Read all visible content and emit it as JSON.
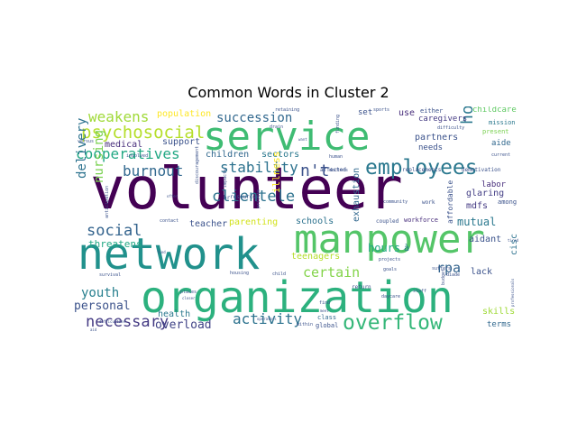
{
  "figure": {
    "title": "Common Words in Cluster 2"
  },
  "cloud": {
    "background_color": "#ffffff",
    "colormap": "viridis",
    "words": [
      {
        "text": "volunteer",
        "color": "#440154"
      },
      {
        "text": "network",
        "color": "#21918c"
      },
      {
        "text": "organization",
        "color": "#2cb17e"
      },
      {
        "text": "service",
        "color": "#3fbc73"
      },
      {
        "text": "manpower",
        "color": "#54c568"
      },
      {
        "text": "employees",
        "color": "#2a788e"
      },
      {
        "text": "overflow",
        "color": "#35b779"
      },
      {
        "text": "psychosocial",
        "color": "#b5de2b"
      },
      {
        "text": "cooperatives",
        "color": "#22a884"
      },
      {
        "text": "weakens",
        "color": "#a0da39"
      },
      {
        "text": "succession",
        "color": "#31688e"
      },
      {
        "text": "stability",
        "color": "#2c728e"
      },
      {
        "text": "home",
        "color": "#2a788e"
      },
      {
        "text": "n't",
        "color": "#3b528b"
      },
      {
        "text": "clientele",
        "color": "#2c728e"
      },
      {
        "text": "burnout",
        "color": "#31688e"
      },
      {
        "text": "social",
        "color": "#33638d"
      },
      {
        "text": "certain",
        "color": "#84d44b"
      },
      {
        "text": "activity",
        "color": "#2c728e"
      },
      {
        "text": "necessary",
        "color": "#443a83"
      },
      {
        "text": "youth",
        "color": "#277f8e"
      },
      {
        "text": "delivery",
        "color": "#2c728e"
      },
      {
        "text": "nursing",
        "color": "#7ad151"
      },
      {
        "text": "rpa",
        "color": "#33638d"
      },
      {
        "text": "mutual",
        "color": "#2a788e"
      },
      {
        "text": "overload",
        "color": "#414487"
      },
      {
        "text": "personal",
        "color": "#3b528b"
      },
      {
        "text": "threatens",
        "color": "#22a884"
      },
      {
        "text": "population",
        "color": "#fde725"
      },
      {
        "text": "medical",
        "color": "#472d7b"
      },
      {
        "text": "support",
        "color": "#3b528b"
      },
      {
        "text": "children",
        "color": "#31688e"
      },
      {
        "text": "sectors",
        "color": "#2a788e"
      },
      {
        "text": "illness",
        "color": "#fde725"
      },
      {
        "text": "teacher",
        "color": "#3b528b"
      },
      {
        "text": "parenting",
        "color": "#d2e21b"
      },
      {
        "text": "schools",
        "color": "#2c728e"
      },
      {
        "text": "teenagers",
        "color": "#b5de2b"
      },
      {
        "text": "health",
        "color": "#2a788e"
      },
      {
        "text": "exhaustion",
        "color": "#31688e"
      },
      {
        "text": "partners",
        "color": "#3b528b"
      },
      {
        "text": "hours",
        "color": "#22a884"
      },
      {
        "text": "à",
        "color": "#2a788e"
      },
      {
        "text": "mdfs",
        "color": "#443a83"
      },
      {
        "text": "glaring",
        "color": "#433e85"
      },
      {
        "text": "aidant",
        "color": "#3b528b"
      },
      {
        "text": "cisc",
        "color": "#2c728e"
      },
      {
        "text": "lack",
        "color": "#3b528b"
      },
      {
        "text": "skills",
        "color": "#a0da39"
      },
      {
        "text": "terms",
        "color": "#31688e"
      },
      {
        "text": "class",
        "color": "#31688e"
      },
      {
        "text": "global",
        "color": "#3b528b"
      },
      {
        "text": "labor",
        "color": "#472d7b"
      },
      {
        "text": "among",
        "color": "#3b528b"
      },
      {
        "text": "aide",
        "color": "#31688e"
      },
      {
        "text": "caregivers",
        "color": "#443a83"
      },
      {
        "text": "needs",
        "color": "#3b528b"
      },
      {
        "text": "use",
        "color": "#472d7b"
      },
      {
        "text": "set",
        "color": "#3b528b"
      },
      {
        "text": "childcare",
        "color": "#5ec962"
      },
      {
        "text": "either",
        "color": "#3b528b"
      },
      {
        "text": "mission",
        "color": "#2a788e"
      },
      {
        "text": "present",
        "color": "#7ad151"
      },
      {
        "text": "demotivation",
        "color": "#3b528b"
      },
      {
        "text": "replacements",
        "color": "#3b528b"
      },
      {
        "text": "affected",
        "color": "#3b528b"
      },
      {
        "text": "affordable",
        "color": "#3b528b"
      },
      {
        "text": "workforce",
        "color": "#472d7b"
      },
      {
        "text": "coupled",
        "color": "#3b528b"
      },
      {
        "text": "resources",
        "color": "#3b528b"
      },
      {
        "text": "sports",
        "color": "#3b528b"
      },
      {
        "text": "difficulty",
        "color": "#3b528b"
      },
      {
        "text": "retaining",
        "color": "#3b528b"
      },
      {
        "text": "human",
        "color": "#3b528b"
      },
      {
        "text": "doctors",
        "color": "#3b528b"
      },
      {
        "text": "private",
        "color": "#3b528b"
      },
      {
        "text": "hr",
        "color": "#3b528b"
      },
      {
        "text": "impacts",
        "color": "#3b528b"
      },
      {
        "text": "discouragement",
        "color": "#3b528b"
      },
      {
        "text": "contact",
        "color": "#3b528b"
      },
      {
        "text": "anticipation",
        "color": "#3b528b"
      },
      {
        "text": "versus",
        "color": "#3b528b"
      },
      {
        "text": "involved",
        "color": "#3b528b"
      },
      {
        "text": "places",
        "color": "#3b528b"
      },
      {
        "text": "closer",
        "color": "#3b528b"
      },
      {
        "text": "survival",
        "color": "#3b528b"
      },
      {
        "text": "difficulties",
        "color": "#3b528b"
      },
      {
        "text": "housing",
        "color": "#3b528b"
      },
      {
        "text": "child",
        "color": "#3b528b"
      },
      {
        "text": "daycare",
        "color": "#3b528b"
      },
      {
        "text": "staff",
        "color": "#3b528b"
      },
      {
        "text": "return",
        "color": "#3b528b"
      },
      {
        "text": "suffers",
        "color": "#3b528b"
      },
      {
        "text": "projects",
        "color": "#3b528b"
      },
      {
        "text": "goals",
        "color": "#3b528b"
      },
      {
        "text": "community",
        "color": "#3b528b"
      },
      {
        "text": "work",
        "color": "#3b528b"
      },
      {
        "text": "find",
        "color": "#3b528b"
      },
      {
        "text": "meet",
        "color": "#3b528b"
      },
      {
        "text": "within",
        "color": "#3b528b"
      },
      {
        "text": "operators",
        "color": "#3b528b"
      },
      {
        "text": "current",
        "color": "#3b528b"
      },
      {
        "text": "professionals",
        "color": "#3b528b"
      },
      {
        "text": "tired",
        "color": "#3b528b"
      },
      {
        "text": "diade",
        "color": "#3b528b"
      },
      {
        "text": "budget",
        "color": "#3b528b"
      },
      {
        "text": "funding",
        "color": "#3b528b"
      },
      {
        "text": "drain",
        "color": "#3b528b"
      },
      {
        "text": "want",
        "color": "#3b528b"
      },
      {
        "text": "food",
        "color": "#3b528b"
      },
      {
        "text": "offer",
        "color": "#3b528b"
      },
      {
        "text": "aid",
        "color": "#3b528b"
      }
    ]
  }
}
